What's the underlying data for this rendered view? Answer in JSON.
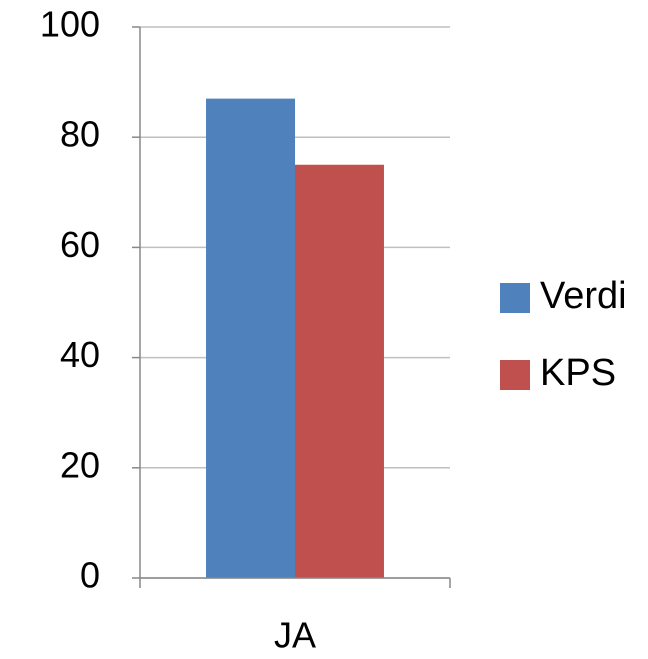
{
  "chart_data": {
    "type": "bar",
    "categories": [
      "JA"
    ],
    "series": [
      {
        "name": "Verdi",
        "color": "#4f81bd",
        "values": [
          87
        ]
      },
      {
        "name": "KPS",
        "color": "#c0504d",
        "values": [
          75
        ]
      }
    ],
    "ylim": [
      0,
      100
    ],
    "yticks": [
      0,
      20,
      40,
      60,
      80,
      100
    ],
    "grid": true,
    "legend": "right"
  }
}
